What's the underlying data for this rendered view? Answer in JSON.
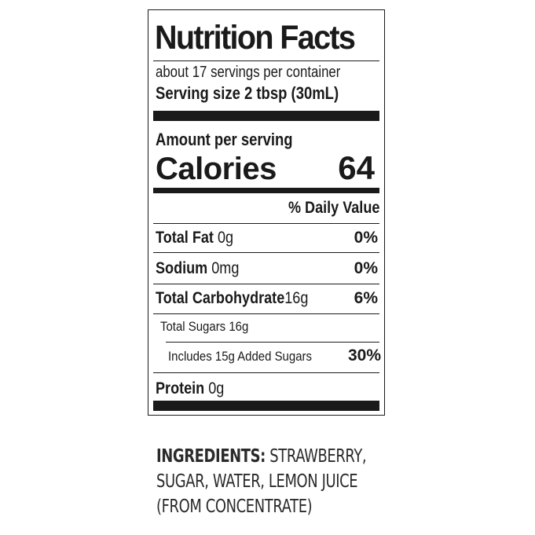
{
  "label": {
    "title": "Nutrition Facts",
    "servings_per_container": "about 17 servings per container",
    "serving_size": "Serving size 2 tbsp (30mL)",
    "amount_per_serving": "Amount per serving",
    "calories_label": "Calories",
    "calories_value": "64",
    "daily_value_header": "% Daily Value",
    "nutrients": [
      {
        "name": "Total Fat",
        "amount": "0g",
        "dv": "0%"
      },
      {
        "name": "Sodium",
        "amount": "0mg",
        "dv": "0%"
      },
      {
        "name": "Total Carbohydrate",
        "amount": "16g",
        "dv": "6%"
      },
      {
        "name": "Total Sugars 16g",
        "amount": "",
        "dv": ""
      },
      {
        "name": "Includes 15g Added Sugars",
        "amount": "",
        "dv": "30%"
      },
      {
        "name": "Protein",
        "amount": "0g",
        "dv": ""
      }
    ]
  },
  "ingredients": {
    "heading": "INGREDIENTS:",
    "line1": "STRAWBERRY,",
    "line2": "SUGAR, WATER, LEMON JUICE",
    "line3": "(FROM CONCENTRATE)"
  }
}
